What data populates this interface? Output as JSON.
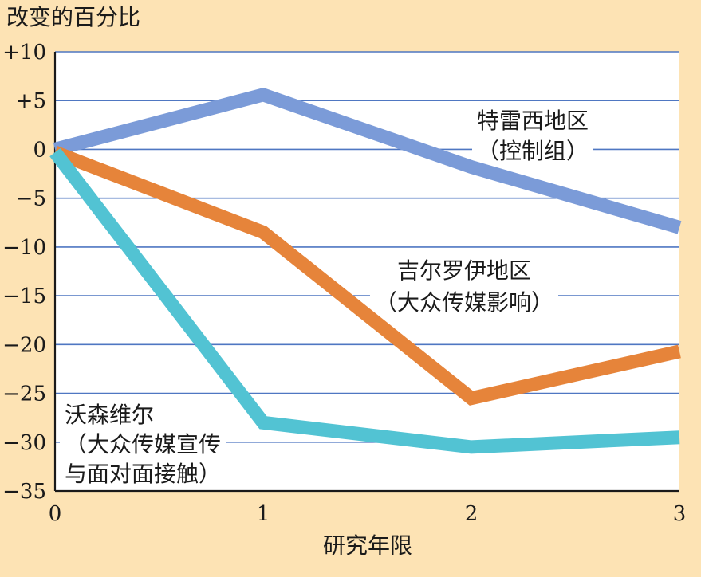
{
  "chart_data": {
    "type": "line",
    "ylabel": "改变的百分比",
    "xlabel": "研究年限",
    "x": [
      0,
      1,
      2,
      3
    ],
    "x_tick_labels": [
      "0",
      "1",
      "2",
      "3"
    ],
    "xlim": [
      0,
      3
    ],
    "ylim": [
      -35,
      10
    ],
    "y_ticks": [
      10,
      5,
      0,
      -5,
      -10,
      -15,
      -20,
      -25,
      -30,
      -35
    ],
    "y_tick_labels": [
      "+10",
      "+5",
      "0",
      "−5",
      "−10",
      "−15",
      "−20",
      "−25",
      "−30",
      "−35"
    ],
    "grid": true,
    "series": [
      {
        "key": "tracy",
        "values": [
          0,
          5.6,
          -1.8,
          -8.0
        ],
        "color": "#7b9bd8",
        "label_lines": [
          "特雷西地区",
          "（控制组）"
        ]
      },
      {
        "key": "gilroy",
        "values": [
          -0.3,
          -8.5,
          -25.5,
          -20.7
        ],
        "color": "#e6843a",
        "label_lines": [
          "吉尔罗伊地区",
          "（大众传媒影响）"
        ]
      },
      {
        "key": "watsonville",
        "values": [
          -0.3,
          -28.0,
          -30.5,
          -29.5
        ],
        "color": "#52c3d3",
        "label_lines": [
          "沃森维尔",
          "（大众传媒宣传",
          "与面对面接触）"
        ]
      }
    ]
  }
}
